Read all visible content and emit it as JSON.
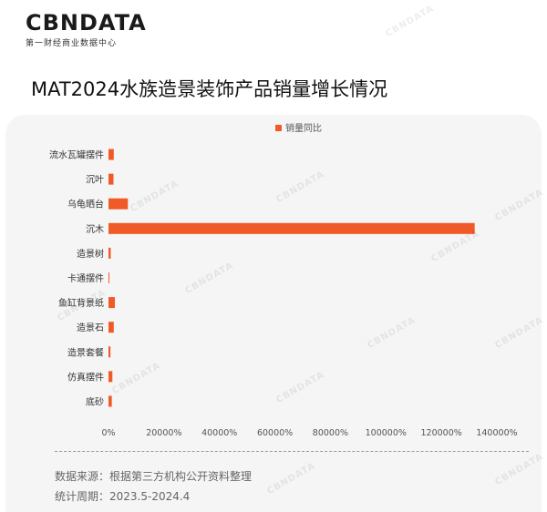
{
  "header": {
    "logo": "CBNDATA",
    "logo_sub": "第一财经商业数据中心"
  },
  "title": "MAT2024水族造景装饰产品销量增长情况",
  "footer": {
    "source": "数据来源：根据第三方机构公开资料整理",
    "period": "统计周期：2023.5-2024.4"
  },
  "watermark": "CBNDATA",
  "colors": {
    "bar": "#f05a28",
    "axis_text": "#555555",
    "panel": "#f5f5f5"
  },
  "chart_data": {
    "type": "bar",
    "orientation": "horizontal",
    "categories": [
      "流水瓦罐摆件",
      "沉叶",
      "乌龟晒台",
      "沉木",
      "造景树",
      "卡通摆件",
      "鱼缸背景纸",
      "造景石",
      "造景套餐",
      "仿真摆件",
      "底砂"
    ],
    "series": [
      {
        "name": "销量同比",
        "values": [
          1900,
          1800,
          7000,
          132000,
          800,
          300,
          2300,
          1900,
          700,
          1400,
          1200
        ]
      }
    ],
    "xlim": [
      0,
      140000
    ],
    "xticks": [
      0,
      20000,
      40000,
      60000,
      80000,
      100000,
      120000,
      140000
    ],
    "xtick_labels": [
      "0%",
      "20000%",
      "40000%",
      "60000%",
      "80000%",
      "100000%",
      "120000%",
      "140000%"
    ],
    "legend": "top-center",
    "grid": false
  }
}
